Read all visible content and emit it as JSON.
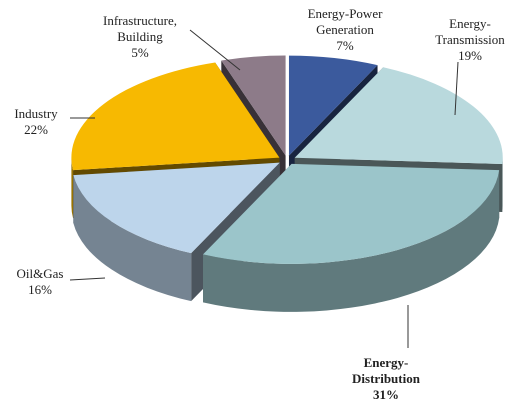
{
  "chart_data": {
    "type": "pie3d",
    "categories": [
      "Energy-Power Generation",
      "Energy-Transmission",
      "Energy-Distribution",
      "Oil&Gas",
      "Industry",
      "Infrastructure, Building"
    ],
    "values": [
      7,
      19,
      31,
      16,
      22,
      5
    ],
    "value_labels": [
      "7%",
      "19%",
      "31%",
      "16%",
      "22%",
      "5%"
    ],
    "colors": [
      "#3b5a9d",
      "#b9d9dd",
      "#9bc5ca",
      "#bdd5eb",
      "#f7b901",
      "#8d7b89"
    ]
  }
}
